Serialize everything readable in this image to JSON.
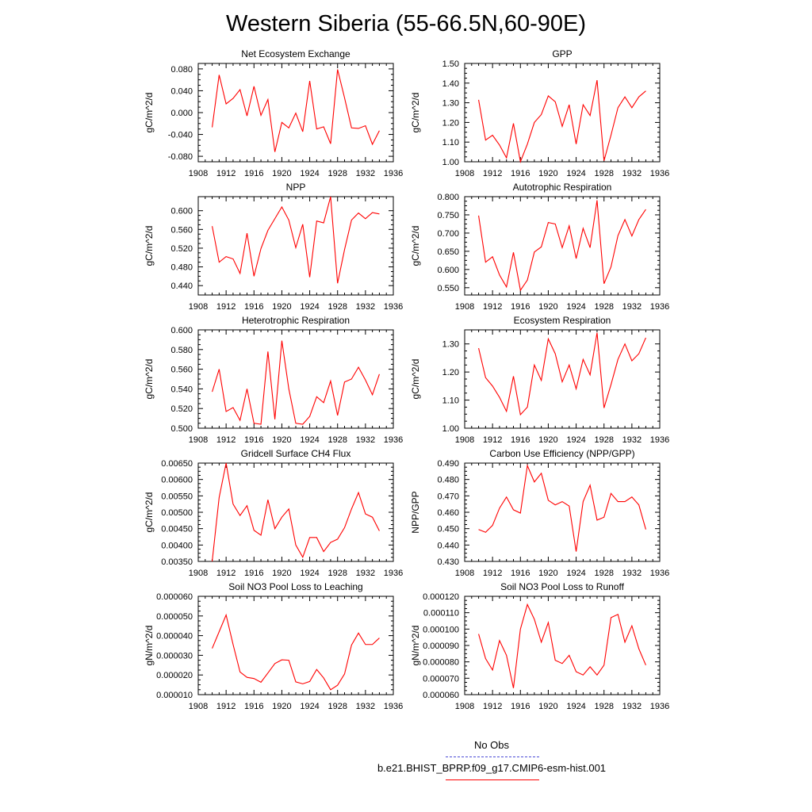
{
  "title": "Western Siberia (55-66.5N,60-90E)",
  "colors": {
    "model": "#ff0000",
    "obs": "#4b4bd6",
    "axis": "#000000"
  },
  "legend": {
    "obs_label": "No Obs",
    "model_label": "b.e21.BHIST_BPRP.f09_g17.CMIP6-esm-hist.001"
  },
  "chart_data": [
    {
      "type": "line",
      "title": "Net Ecosystem Exchange",
      "ylabel": "gC/m^2/d",
      "xlim": [
        1908,
        1936
      ],
      "ylim": [
        -0.09,
        0.09
      ],
      "xticks": [
        "1908",
        "1912",
        "1916",
        "1920",
        "1924",
        "1928",
        "1932",
        "1936"
      ],
      "yticks": [
        -0.08,
        -0.04,
        0.0,
        0.04,
        0.08
      ],
      "yticklabels": [
        "-0.080",
        "-0.040",
        "0.000",
        "0.040",
        "0.080"
      ],
      "x": [
        1910,
        1911,
        1912,
        1913,
        1914,
        1915,
        1916,
        1917,
        1918,
        1919,
        1920,
        1921,
        1922,
        1923,
        1924,
        1925,
        1926,
        1927,
        1928,
        1929,
        1930,
        1931,
        1932,
        1933,
        1934
      ],
      "series": [
        {
          "values": [
            -0.027,
            0.069,
            0.016,
            0.026,
            0.042,
            -0.006,
            0.048,
            -0.005,
            0.024,
            -0.072,
            -0.018,
            -0.028,
            -0.001,
            -0.035,
            0.058,
            -0.03,
            -0.026,
            -0.057,
            0.079,
            0.027,
            -0.028,
            -0.029,
            -0.024,
            -0.058,
            -0.033
          ]
        }
      ]
    },
    {
      "type": "line",
      "title": "GPP",
      "ylabel": "gC/m^2/d",
      "xlim": [
        1908,
        1936
      ],
      "ylim": [
        1.0,
        1.5
      ],
      "xticks": [
        "1908",
        "1912",
        "1916",
        "1920",
        "1924",
        "1928",
        "1932",
        "1936"
      ],
      "yticks": [
        1.0,
        1.1,
        1.2,
        1.3,
        1.4,
        1.5
      ],
      "yticklabels": [
        "1.00",
        "1.10",
        "1.20",
        "1.30",
        "1.40",
        "1.50"
      ],
      "x": [
        1910,
        1911,
        1912,
        1913,
        1914,
        1915,
        1916,
        1917,
        1918,
        1919,
        1920,
        1921,
        1922,
        1923,
        1924,
        1925,
        1926,
        1927,
        1928,
        1929,
        1930,
        1931,
        1932,
        1933,
        1934
      ],
      "series": [
        {
          "values": [
            1.315,
            1.11,
            1.135,
            1.085,
            1.02,
            1.195,
            0.995,
            1.09,
            1.2,
            1.24,
            1.335,
            1.305,
            1.18,
            1.29,
            1.09,
            1.29,
            1.235,
            1.415,
            1.005,
            1.135,
            1.275,
            1.33,
            1.275,
            1.33,
            1.36
          ]
        }
      ]
    },
    {
      "type": "line",
      "title": "NPP",
      "ylabel": "gC/m^2/d",
      "xlim": [
        1908,
        1936
      ],
      "ylim": [
        0.42,
        0.63
      ],
      "xticks": [
        "1908",
        "1912",
        "1916",
        "1920",
        "1924",
        "1928",
        "1932",
        "1936"
      ],
      "yticks": [
        0.44,
        0.48,
        0.52,
        0.56,
        0.6
      ],
      "yticklabels": [
        "0.440",
        "0.480",
        "0.520",
        "0.560",
        "0.600"
      ],
      "x": [
        1910,
        1911,
        1912,
        1913,
        1914,
        1915,
        1916,
        1917,
        1918,
        1919,
        1920,
        1921,
        1922,
        1923,
        1924,
        1925,
        1926,
        1927,
        1928,
        1929,
        1930,
        1931,
        1932,
        1933,
        1934
      ],
      "series": [
        {
          "values": [
            0.567,
            0.49,
            0.502,
            0.497,
            0.466,
            0.552,
            0.46,
            0.519,
            0.558,
            0.583,
            0.608,
            0.58,
            0.521,
            0.571,
            0.458,
            0.578,
            0.574,
            0.63,
            0.445,
            0.517,
            0.58,
            0.595,
            0.583,
            0.596,
            0.593
          ]
        }
      ]
    },
    {
      "type": "line",
      "title": "Autotrophic Respiration",
      "ylabel": "gC/m^2/d",
      "xlim": [
        1908,
        1936
      ],
      "ylim": [
        0.53,
        0.8
      ],
      "xticks": [
        "1908",
        "1912",
        "1916",
        "1920",
        "1924",
        "1928",
        "1932",
        "1936"
      ],
      "yticks": [
        0.55,
        0.6,
        0.65,
        0.7,
        0.75,
        0.8
      ],
      "yticklabels": [
        "0.550",
        "0.600",
        "0.650",
        "0.700",
        "0.750",
        "0.800"
      ],
      "x": [
        1910,
        1911,
        1912,
        1913,
        1914,
        1915,
        1916,
        1917,
        1918,
        1919,
        1920,
        1921,
        1922,
        1923,
        1924,
        1925,
        1926,
        1927,
        1928,
        1929,
        1930,
        1931,
        1932,
        1933,
        1934
      ],
      "series": [
        {
          "values": [
            0.748,
            0.62,
            0.635,
            0.585,
            0.552,
            0.647,
            0.543,
            0.571,
            0.648,
            0.662,
            0.729,
            0.725,
            0.66,
            0.72,
            0.63,
            0.713,
            0.66,
            0.79,
            0.561,
            0.607,
            0.693,
            0.737,
            0.692,
            0.737,
            0.765
          ]
        }
      ]
    },
    {
      "type": "line",
      "title": "Heterotrophic Respiration",
      "ylabel": "gC/m^2/d",
      "xlim": [
        1908,
        1936
      ],
      "ylim": [
        0.5,
        0.6
      ],
      "xticks": [
        "1908",
        "1912",
        "1916",
        "1920",
        "1924",
        "1928",
        "1932",
        "1936"
      ],
      "yticks": [
        0.5,
        0.52,
        0.54,
        0.56,
        0.58,
        0.6
      ],
      "yticklabels": [
        "0.500",
        "0.520",
        "0.540",
        "0.560",
        "0.580",
        "0.600"
      ],
      "x": [
        1910,
        1911,
        1912,
        1913,
        1914,
        1915,
        1916,
        1917,
        1918,
        1919,
        1920,
        1921,
        1922,
        1923,
        1924,
        1925,
        1926,
        1927,
        1928,
        1929,
        1930,
        1931,
        1932,
        1933,
        1934
      ],
      "series": [
        {
          "values": [
            0.537,
            0.56,
            0.517,
            0.521,
            0.508,
            0.54,
            0.505,
            0.504,
            0.578,
            0.509,
            0.589,
            0.54,
            0.505,
            0.504,
            0.512,
            0.532,
            0.526,
            0.548,
            0.513,
            0.547,
            0.55,
            0.562,
            0.549,
            0.534,
            0.555
          ]
        }
      ]
    },
    {
      "type": "line",
      "title": "Ecosystem Respiration",
      "ylabel": "gC/m^2/d",
      "xlim": [
        1908,
        1936
      ],
      "ylim": [
        1.0,
        1.35
      ],
      "xticks": [
        "1908",
        "1912",
        "1916",
        "1920",
        "1924",
        "1928",
        "1932",
        "1936"
      ],
      "yticks": [
        1.0,
        1.1,
        1.2,
        1.3
      ],
      "yticklabels": [
        "1.00",
        "1.10",
        "1.20",
        "1.30"
      ],
      "x": [
        1910,
        1911,
        1912,
        1913,
        1914,
        1915,
        1916,
        1917,
        1918,
        1919,
        1920,
        1921,
        1922,
        1923,
        1924,
        1925,
        1926,
        1927,
        1928,
        1929,
        1930,
        1931,
        1932,
        1933,
        1934
      ],
      "series": [
        {
          "values": [
            1.285,
            1.18,
            1.15,
            1.11,
            1.06,
            1.185,
            1.048,
            1.075,
            1.225,
            1.17,
            1.318,
            1.265,
            1.165,
            1.225,
            1.14,
            1.245,
            1.19,
            1.34,
            1.072,
            1.155,
            1.245,
            1.3,
            1.24,
            1.265,
            1.322
          ]
        }
      ]
    },
    {
      "type": "line",
      "title": "Gridcell Surface CH4 Flux",
      "ylabel": "gC/m^2/d",
      "xlim": [
        1908,
        1936
      ],
      "ylim": [
        0.0035,
        0.0065
      ],
      "xticks": [
        "1908",
        "1912",
        "1916",
        "1920",
        "1924",
        "1928",
        "1932",
        "1936"
      ],
      "yticks": [
        0.0035,
        0.004,
        0.0045,
        0.005,
        0.0055,
        0.006,
        0.0065
      ],
      "yticklabels": [
        "0.00350",
        "0.00400",
        "0.00450",
        "0.00500",
        "0.00550",
        "0.00600",
        "0.00650"
      ],
      "x": [
        1910,
        1911,
        1912,
        1913,
        1914,
        1915,
        1916,
        1917,
        1918,
        1919,
        1920,
        1921,
        1922,
        1923,
        1924,
        1925,
        1926,
        1927,
        1928,
        1929,
        1930,
        1931,
        1932,
        1933,
        1934
      ],
      "series": [
        {
          "values": [
            0.0035,
            0.00545,
            0.0065,
            0.00525,
            0.0049,
            0.0052,
            0.00445,
            0.0043,
            0.00538,
            0.0045,
            0.00485,
            0.0051,
            0.004,
            0.00363,
            0.00423,
            0.00423,
            0.0038,
            0.00408,
            0.00418,
            0.00453,
            0.0051,
            0.0056,
            0.00495,
            0.00485,
            0.00443
          ]
        }
      ]
    },
    {
      "type": "line",
      "title": "Carbon Use Efficiency (NPP/GPP)",
      "ylabel": "NPP/GPP",
      "xlim": [
        1908,
        1936
      ],
      "ylim": [
        0.43,
        0.49
      ],
      "xticks": [
        "1908",
        "1912",
        "1916",
        "1920",
        "1924",
        "1928",
        "1932",
        "1936"
      ],
      "yticks": [
        0.43,
        0.44,
        0.45,
        0.46,
        0.47,
        0.48,
        0.49
      ],
      "yticklabels": [
        "0.430",
        "0.440",
        "0.450",
        "0.460",
        "0.470",
        "0.480",
        "0.490"
      ],
      "x": [
        1910,
        1911,
        1912,
        1913,
        1914,
        1915,
        1916,
        1917,
        1918,
        1919,
        1920,
        1921,
        1922,
        1923,
        1924,
        1925,
        1926,
        1927,
        1928,
        1929,
        1930,
        1931,
        1932,
        1933,
        1934
      ],
      "series": [
        {
          "values": [
            0.4495,
            0.4478,
            0.452,
            0.4625,
            0.4693,
            0.4615,
            0.4595,
            0.4885,
            0.4785,
            0.4838,
            0.4673,
            0.4645,
            0.4665,
            0.4638,
            0.436,
            0.4665,
            0.4765,
            0.4552,
            0.457,
            0.4715,
            0.4665,
            0.4665,
            0.4693,
            0.4645,
            0.4495
          ]
        }
      ]
    },
    {
      "type": "line",
      "title": "Soil NO3 Pool Loss to Leaching",
      "ylabel": "gN/m^2/d",
      "xlim": [
        1908,
        1936
      ],
      "ylim": [
        1e-05,
        6e-05
      ],
      "xticks": [
        "1908",
        "1912",
        "1916",
        "1920",
        "1924",
        "1928",
        "1932",
        "1936"
      ],
      "yticks": [
        1e-05,
        2e-05,
        3e-05,
        4e-05,
        5e-05,
        6e-05
      ],
      "yticklabels": [
        "0.000010",
        "0.000020",
        "0.000030",
        "0.000040",
        "0.000050",
        "0.000060"
      ],
      "x": [
        1910,
        1911,
        1912,
        1913,
        1914,
        1915,
        1916,
        1917,
        1918,
        1919,
        1920,
        1921,
        1922,
        1923,
        1924,
        1925,
        1926,
        1927,
        1928,
        1929,
        1930,
        1931,
        1932,
        1933,
        1934
      ],
      "series": [
        {
          "values": [
            3.35e-05,
            4.2e-05,
            5.05e-05,
            3.55e-05,
            2.15e-05,
            1.88e-05,
            1.82e-05,
            1.63e-05,
            2.1e-05,
            2.58e-05,
            2.77e-05,
            2.75e-05,
            1.65e-05,
            1.55e-05,
            1.67e-05,
            2.28e-05,
            1.85e-05,
            1.25e-05,
            1.48e-05,
            2.05e-05,
            3.52e-05,
            4.13e-05,
            3.55e-05,
            3.55e-05,
            3.88e-05
          ]
        }
      ]
    },
    {
      "type": "line",
      "title": "Soil NO3 Pool Loss to Runoff",
      "ylabel": "gN/m^2/d",
      "xlim": [
        1908,
        1936
      ],
      "ylim": [
        6e-05,
        0.00012
      ],
      "xticks": [
        "1908",
        "1912",
        "1916",
        "1920",
        "1924",
        "1928",
        "1932",
        "1936"
      ],
      "yticks": [
        6e-05,
        7e-05,
        8e-05,
        9e-05,
        0.0001,
        0.00011,
        0.00012
      ],
      "yticklabels": [
        "0.000060",
        "0.000070",
        "0.000080",
        "0.000090",
        "0.000100",
        "0.000110",
        "0.000120"
      ],
      "x": [
        1910,
        1911,
        1912,
        1913,
        1914,
        1915,
        1916,
        1917,
        1918,
        1919,
        1920,
        1921,
        1922,
        1923,
        1924,
        1925,
        1926,
        1927,
        1928,
        1929,
        1930,
        1931,
        1932,
        1933,
        1934
      ],
      "series": [
        {
          "values": [
            9.7e-05,
            8.2e-05,
            7.5e-05,
            9.3e-05,
            8.4e-05,
            6.4e-05,
            0.0001,
            0.000115,
            0.000106,
            9.2e-05,
            0.000104,
            8.1e-05,
            7.9e-05,
            8.4e-05,
            7.4e-05,
            7.2e-05,
            7.7e-05,
            7.2e-05,
            7.8e-05,
            0.000107,
            0.000109,
            9.2e-05,
            0.000102,
            8.8e-05,
            7.8e-05
          ]
        }
      ]
    }
  ]
}
